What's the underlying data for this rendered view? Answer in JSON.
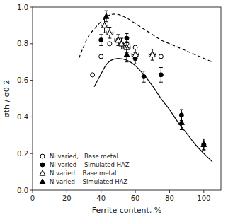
{
  "chart_data": {
    "type": "scatter",
    "xlabel": "Ferrite content, %",
    "ylabel": "σth / σ0.2",
    "xlim": [
      0,
      110
    ],
    "ylim": [
      0,
      1.0
    ],
    "xticks": [
      0,
      20,
      40,
      60,
      80,
      100
    ],
    "yticks": [
      {
        "value": 0,
        "label": "0.0"
      },
      0.2,
      0.4,
      0.6,
      0.8,
      {
        "value": 1.0,
        "label": "1.0"
      }
    ],
    "grid": false,
    "legend": "lower left",
    "series": [
      {
        "type": "line",
        "line_style": "dashed",
        "color": "#000000",
        "x": [
          27,
          32,
          36,
          40,
          43,
          46,
          50,
          55,
          60,
          65,
          70,
          75,
          80,
          85,
          90,
          95,
          100,
          105
        ],
        "values": [
          0.72,
          0.83,
          0.88,
          0.92,
          0.945,
          0.96,
          0.96,
          0.94,
          0.91,
          0.88,
          0.85,
          0.82,
          0.8,
          0.78,
          0.76,
          0.74,
          0.72,
          0.7
        ]
      },
      {
        "type": "line",
        "line_style": "solid",
        "color": "#000000",
        "x": [
          36,
          40,
          43,
          46,
          50,
          55,
          60,
          65,
          70,
          75,
          80,
          85,
          90,
          95,
          100,
          105
        ],
        "values": [
          0.565,
          0.635,
          0.685,
          0.71,
          0.72,
          0.71,
          0.68,
          0.63,
          0.57,
          0.5,
          0.44,
          0.37,
          0.31,
          0.25,
          0.2,
          0.155
        ]
      },
      {
        "name": "Ni varied,   Base metal",
        "type": "scatter",
        "marker": "circle-open",
        "color": "#000000",
        "x": [
          35,
          40,
          45,
          50,
          52,
          55,
          60,
          70,
          75
        ],
        "values": [
          0.63,
          0.73,
          0.8,
          0.82,
          0.8,
          0.8,
          0.78,
          0.74,
          0.73
        ]
      },
      {
        "name": "Ni varied    Simulated HAZ",
        "type": "scatter",
        "marker": "circle",
        "color": "#000000",
        "x": [
          40,
          55,
          60,
          65,
          75,
          87,
          100
        ],
        "values": [
          0.82,
          0.83,
          0.72,
          0.62,
          0.63,
          0.41,
          0.25
        ],
        "yerr": [
          0.03,
          0.025,
          0.03,
          0.03,
          0.04,
          0.03,
          0.03
        ]
      },
      {
        "name": "N varied    Base metal",
        "type": "scatter",
        "marker": "triangle-open",
        "color": "#000000",
        "x": [
          42,
          45,
          50,
          52,
          55,
          60,
          70
        ],
        "values": [
          0.9,
          0.86,
          0.82,
          0.8,
          0.78,
          0.74,
          0.74
        ],
        "xerr": [
          2,
          2,
          2,
          2,
          2,
          2,
          2
        ],
        "yerr": [
          0.04,
          0.03,
          0.03,
          0.03,
          0.03,
          0.03,
          0.03
        ]
      },
      {
        "name": "N varied    Simulated HAZ",
        "type": "scatter",
        "marker": "triangle",
        "color": "#000000",
        "x": [
          43,
          55,
          87,
          100
        ],
        "values": [
          0.95,
          0.74,
          0.37,
          0.25
        ],
        "yerr": [
          0.03,
          0.04,
          0.04,
          0.03
        ]
      }
    ]
  }
}
